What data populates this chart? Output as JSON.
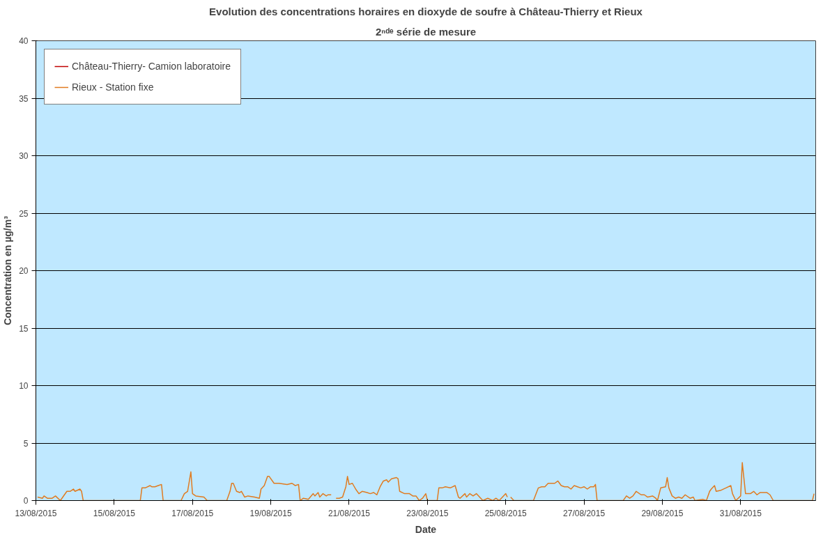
{
  "chart_data": {
    "type": "line",
    "title": "Evolution des concentrations horaires en dioxyde de soufre à Château-Thierry et Rieux",
    "subtitle": "2ⁿᵈᵉ série de mesure",
    "xlabel": "Date",
    "ylabel": "Concentration en µg/m³",
    "xlim": [
      "2015-08-13",
      "2015-09-01T22:00"
    ],
    "xticks": [
      {
        "value": "2015-08-13",
        "label": "13/08/2015"
      },
      {
        "value": "2015-08-15",
        "label": "15/08/2015"
      },
      {
        "value": "2015-08-17",
        "label": "17/08/2015"
      },
      {
        "value": "2015-08-19",
        "label": "19/08/2015"
      },
      {
        "value": "2015-08-21",
        "label": "21/08/2015"
      },
      {
        "value": "2015-08-23",
        "label": "23/08/2015"
      },
      {
        "value": "2015-08-25",
        "label": "25/08/2015"
      },
      {
        "value": "2015-08-27",
        "label": "27/08/2015"
      },
      {
        "value": "2015-08-29",
        "label": "29/08/2015"
      },
      {
        "value": "2015-08-31",
        "label": "31/08/2015"
      }
    ],
    "ylim": [
      0,
      40
    ],
    "yticks": [
      0,
      5,
      10,
      15,
      20,
      25,
      30,
      35,
      40
    ],
    "grid": "y",
    "legend": "top left",
    "line_style": "solid",
    "marker": "none",
    "series": [
      {
        "name": "Château-Thierry- Camion laboratoire",
        "color": "#c00000"
      },
      {
        "name": "Rieux - Station fixe",
        "color": "#e07b20",
        "x": [
          "2015-08-13T01:00",
          "2015-08-13T04:00",
          "2015-08-13T05:00",
          "2015-08-13T07:00",
          "2015-08-13T10:00",
          "2015-08-13T12:00",
          "2015-08-13T15:00",
          "2015-08-13T19:00",
          "2015-08-13T21:00",
          "2015-08-13T23:00",
          "2015-08-14T00:00",
          "2015-08-14T03:00",
          "2015-08-14T04:00",
          "2015-08-14T05:00",
          "2015-08-15T16:00",
          "2015-08-15T17:00",
          "2015-08-15T19:00",
          "2015-08-15T22:00",
          "2015-08-15T23:00",
          "2015-08-16T01:00",
          "2015-08-16T03:00",
          "2015-08-16T05:00",
          "2015-08-16T06:00",
          "2015-08-16T17:00",
          "2015-08-16T19:00",
          "2015-08-16T21:00",
          "2015-08-16T23:00",
          "2015-08-17T00:00",
          "2015-08-17T02:00",
          "2015-08-17T07:00",
          "2015-08-17T09:00",
          "2015-08-17T14:00",
          "2015-08-17T21:00",
          "2015-08-17T23:00",
          "2015-08-18T00:00",
          "2015-08-18T01:00",
          "2015-08-18T03:00",
          "2015-08-18T05:00",
          "2015-08-18T06:00",
          "2015-08-18T08:00",
          "2015-08-18T10:00",
          "2015-08-18T14:00",
          "2015-08-18T17:00",
          "2015-08-18T18:00",
          "2015-08-18T20:00",
          "2015-08-18T22:00",
          "2015-08-18T23:00",
          "2015-08-19T02:00",
          "2015-08-19T05:00",
          "2015-08-19T10:00",
          "2015-08-19T13:00",
          "2015-08-19T14:00",
          "2015-08-19T15:00",
          "2015-08-19T17:00",
          "2015-08-19T18:00",
          "2015-08-19T20:00",
          "2015-08-19T23:00",
          "2015-08-20T02:00",
          "2015-08-20T03:00",
          "2015-08-20T05:00",
          "2015-08-20T06:00",
          "2015-08-20T08:00",
          "2015-08-20T10:00",
          "2015-08-20T11:00",
          "2015-08-20T13:00",
          "2015-08-20T14:00",
          "2015-08-20T16:00",
          "2015-08-20T18:00",
          "2015-08-20T20:00",
          "2015-08-20T22:00",
          "2015-08-20T23:00",
          "2015-08-21T00:00",
          "2015-08-21T02:00",
          "2015-08-21T04:00",
          "2015-08-21T06:00",
          "2015-08-21T08:00",
          "2015-08-21T11:00",
          "2015-08-21T13:00",
          "2015-08-21T15:00",
          "2015-08-21T17:00",
          "2015-08-21T19:00",
          "2015-08-21T21:00",
          "2015-08-21T23:00",
          "2015-08-22T00:00",
          "2015-08-22T02:00",
          "2015-08-22T05:00",
          "2015-08-22T06:00",
          "2015-08-22T07:00",
          "2015-08-22T10:00",
          "2015-08-22T13:00",
          "2015-08-22T15:00",
          "2015-08-22T17:00",
          "2015-08-22T19:00",
          "2015-08-22T21:00",
          "2015-08-22T23:00",
          "2015-08-23T00:00",
          "2015-08-23T06:00",
          "2015-08-23T07:00",
          "2015-08-23T09:00",
          "2015-08-23T11:00",
          "2015-08-23T14:00",
          "2015-08-23T17:00",
          "2015-08-23T19:00",
          "2015-08-23T20:00",
          "2015-08-23T23:00",
          "2015-08-24T00:00",
          "2015-08-24T02:00",
          "2015-08-24T04:00",
          "2015-08-24T06:00",
          "2015-08-24T08:00",
          "2015-08-24T10:00",
          "2015-08-24T13:00",
          "2015-08-24T16:00",
          "2015-08-24T18:00",
          "2015-08-24T20:00",
          "2015-08-25T00:00",
          "2015-08-25T01:00",
          "2015-08-25T02:00",
          "2015-08-25T03:00",
          "2015-08-25T05:00",
          "2015-08-25T17:00",
          "2015-08-25T20:00",
          "2015-08-25T22:00",
          "2015-08-26T00:00",
          "2015-08-26T02:00",
          "2015-08-26T05:00",
          "2015-08-26T06:00",
          "2015-08-26T08:00",
          "2015-08-26T10:00",
          "2015-08-26T12:00",
          "2015-08-26T14:00",
          "2015-08-26T16:00",
          "2015-08-26T18:00",
          "2015-08-26T20:00",
          "2015-08-26T22:00",
          "2015-08-27T00:00",
          "2015-08-27T02:00",
          "2015-08-27T04:00",
          "2015-08-27T06:00",
          "2015-08-27T07:00",
          "2015-08-27T08:00",
          "2015-08-28T00:00",
          "2015-08-28T02:00",
          "2015-08-28T04:00",
          "2015-08-28T06:00",
          "2015-08-28T08:00",
          "2015-08-28T11:00",
          "2015-08-28T13:00",
          "2015-08-28T15:00",
          "2015-08-28T18:00",
          "2015-08-28T20:00",
          "2015-08-28T21:00",
          "2015-08-28T23:00",
          "2015-08-29T02:00",
          "2015-08-29T03:00",
          "2015-08-29T04:00",
          "2015-08-29T06:00",
          "2015-08-29T08:00",
          "2015-08-29T10:00",
          "2015-08-29T12:00",
          "2015-08-29T14:00",
          "2015-08-29T17:00",
          "2015-08-29T19:00",
          "2015-08-29T20:00",
          "2015-08-30T01:00",
          "2015-08-30T03:00",
          "2015-08-30T05:00",
          "2015-08-30T06:00",
          "2015-08-30T08:00",
          "2015-08-30T09:00",
          "2015-08-30T12:00",
          "2015-08-30T15:00",
          "2015-08-30T18:00",
          "2015-08-30T19:00",
          "2015-08-30T21:00",
          "2015-08-31T00:00",
          "2015-08-31T01:00",
          "2015-08-31T03:00",
          "2015-08-31T06:00",
          "2015-08-31T08:00",
          "2015-08-31T10:00",
          "2015-08-31T12:00",
          "2015-08-31T16:00",
          "2015-08-31T18:00",
          "2015-08-31T20:00",
          "2015-09-01T20:00",
          "2015-09-01T21:00"
        ],
        "values": [
          0.3,
          0.2,
          0.4,
          0.2,
          0.2,
          0.4,
          0.0,
          0.8,
          0.8,
          1.0,
          0.8,
          1.0,
          0.8,
          0,
          0,
          1.1,
          1.1,
          1.3,
          1.2,
          1.2,
          1.3,
          1.4,
          0,
          0,
          0.6,
          0.8,
          2.5,
          0.6,
          0.4,
          0.3,
          0.0,
          0,
          0,
          0.8,
          1.5,
          1.5,
          0.8,
          0.7,
          0.8,
          0.3,
          0.4,
          0.3,
          0.2,
          1.0,
          1.3,
          2.1,
          2.1,
          1.5,
          1.5,
          1.4,
          1.5,
          1.4,
          1.3,
          1.4,
          0,
          0.2,
          0.1,
          0.6,
          0.4,
          0.7,
          0.3,
          0.6,
          0.4,
          0.5,
          0.5,
          null,
          0.2,
          0.2,
          0.3,
          1.2,
          2.1,
          1.4,
          1.5,
          1.0,
          0.6,
          0.8,
          0.7,
          0.6,
          0.7,
          0.5,
          1.2,
          1.7,
          1.8,
          1.6,
          1.9,
          2.0,
          1.9,
          0.8,
          0.6,
          0.6,
          0.4,
          0.4,
          0,
          0.2,
          0.6,
          0,
          0,
          1.1,
          1.1,
          1.2,
          1.1,
          1.3,
          0.3,
          0.2,
          0.6,
          0.3,
          0.6,
          0.4,
          0.6,
          0.3,
          0.0,
          0.2,
          0.0,
          0.2,
          0.0,
          0.6,
          0.3,
          null,
          0.3,
          0,
          0,
          1.1,
          1.2,
          1.2,
          1.5,
          1.5,
          1.5,
          1.7,
          1.3,
          1.2,
          1.2,
          1.0,
          1.3,
          1.2,
          1.1,
          1.2,
          1.0,
          1.2,
          1.2,
          1.4,
          0,
          0,
          0.4,
          0.2,
          0.4,
          0.8,
          0.5,
          0.5,
          0.3,
          0.4,
          0.2,
          0,
          1.1,
          1.2,
          2.0,
          1.1,
          0.4,
          0.2,
          0.3,
          0.2,
          0.5,
          0.2,
          0.3,
          0,
          0.1,
          0,
          0.8,
          1.0,
          1.3,
          0.8,
          0.9,
          1.1,
          1.3,
          0.6,
          0,
          0.4,
          3.3,
          0.6,
          0.6,
          0.8,
          0.5,
          0.7,
          0.7,
          0.5,
          0,
          0,
          0.6
        ]
      }
    ]
  }
}
